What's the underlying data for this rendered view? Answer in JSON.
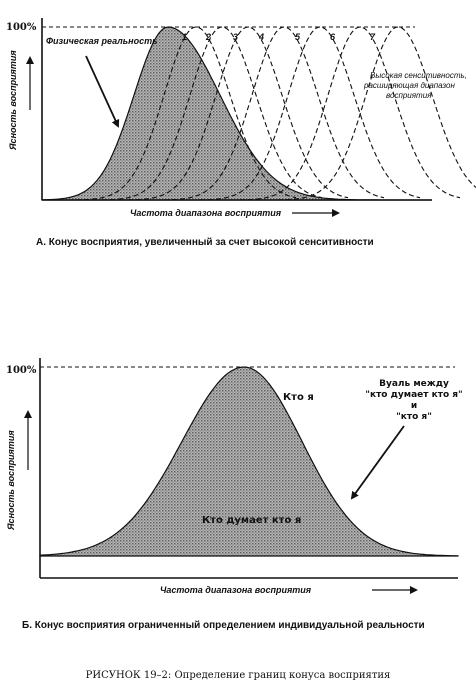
{
  "figure_a": {
    "y_axis_label": "Ясность восприятия",
    "y_top_label": "100%",
    "x_axis_label": "Частота диапазона восприятия",
    "physical_reality_label": "Физическая реальность",
    "curve_numbers": [
      "1",
      "2",
      "3",
      "4",
      "5",
      "6",
      "7"
    ],
    "high_sensitivity_label": [
      "Высокая сенситивность,",
      "расширяющая диапазон",
      "восприятия"
    ],
    "caption": "А.  Конус восприятия, увеличенный за счет высокой сенситивности"
  },
  "figure_b": {
    "y_axis_label": "Ясность восприятия",
    "y_top_label": "100%",
    "x_axis_label": "Частота диапазона восприятия",
    "who_i_am": "Кто я",
    "who_thinks": "Кто думает кто я",
    "veil_label": [
      "Вуаль между",
      "\"кто думает кто я\"",
      "и",
      "\"кто я\""
    ],
    "caption": "Б.  Конус восприятия ограниченный определением индивидуальной реальности"
  },
  "figure_caption": "РИСУНОК 19–2: Определение границ конуса восприятия",
  "colors": {
    "ink": "#111111",
    "fill": "#9a9a9a",
    "paper": "#ffffff"
  }
}
